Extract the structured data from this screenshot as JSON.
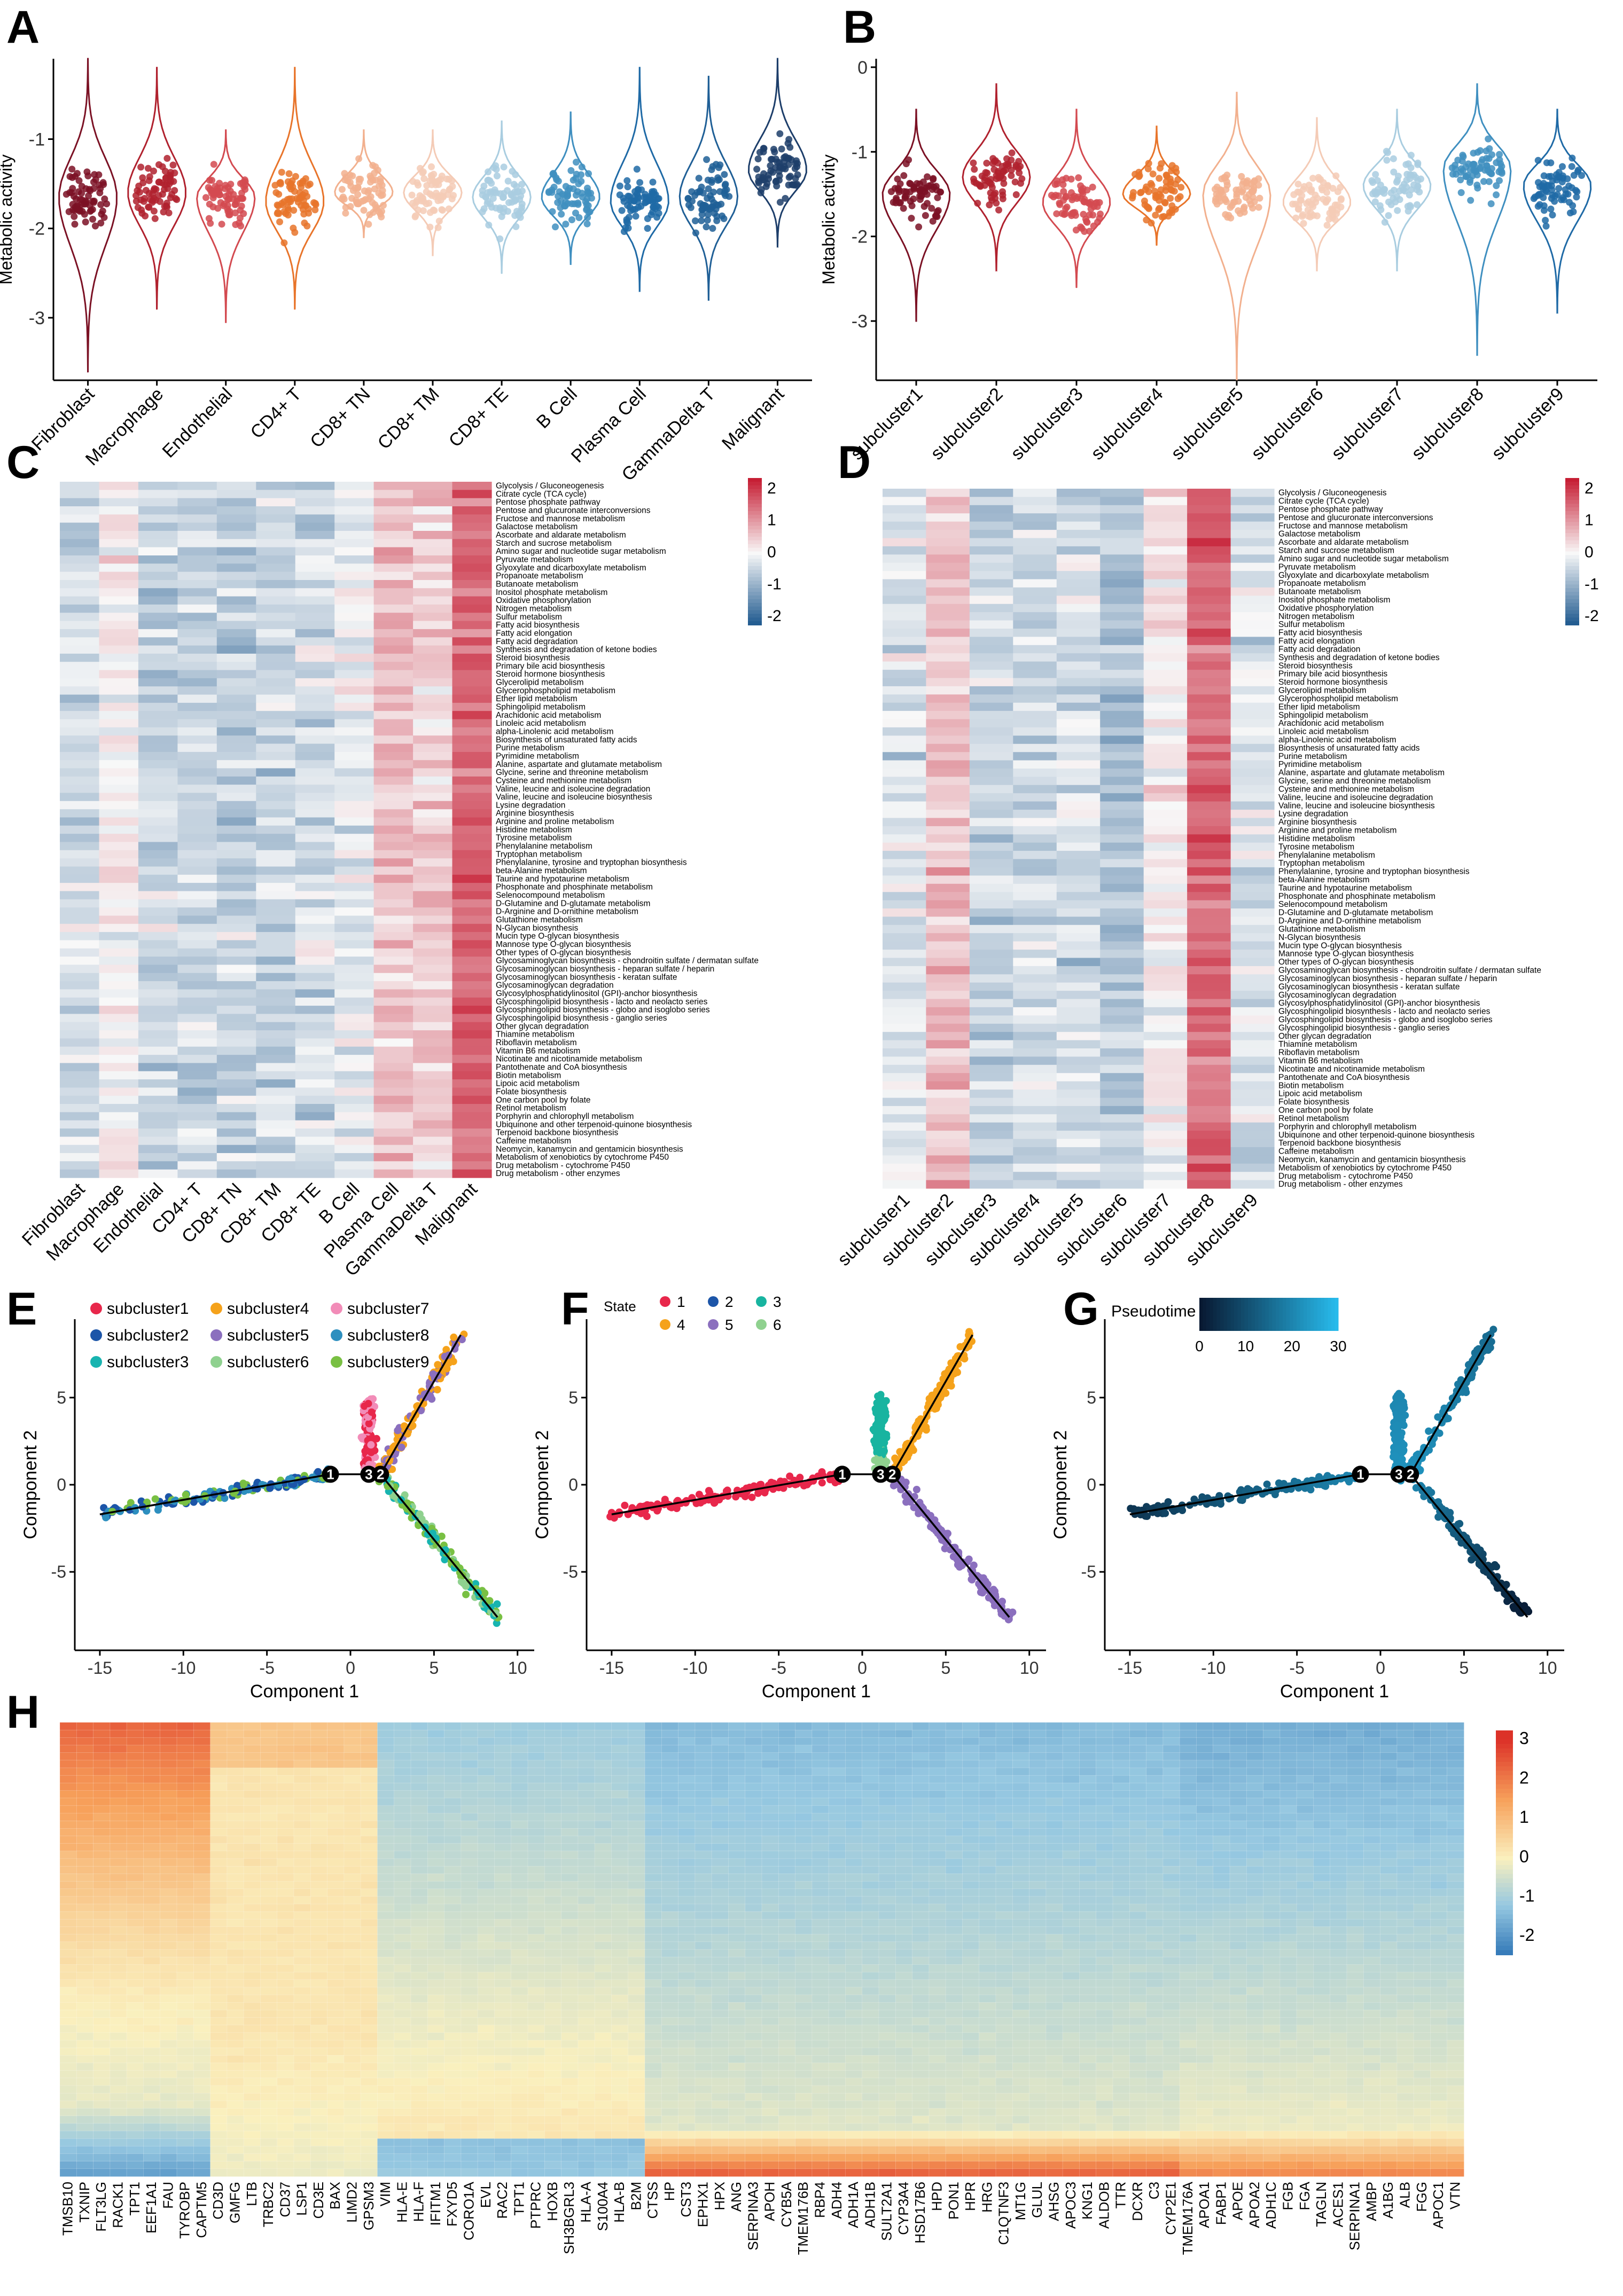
{
  "panel_labels": [
    "A",
    "B",
    "C",
    "D",
    "E",
    "F",
    "G",
    "H"
  ],
  "chart_data": [
    {
      "id": "A",
      "type": "violin",
      "ylabel": "Metabolic activity",
      "ylim": [
        -3.7,
        -0.1
      ],
      "yticks": [
        -1,
        -2,
        -3
      ],
      "categories": [
        "Fibroblast",
        "Macrophage",
        "Endothelial",
        "CD4+ T",
        "CD8+ TN",
        "CD8+ TM",
        "CD8+ TE",
        "B Cell",
        "Plasma Cell",
        "GammaDelta T",
        "Malignant"
      ],
      "medians": [
        -1.65,
        -1.6,
        -1.65,
        -1.7,
        -1.6,
        -1.6,
        -1.65,
        -1.65,
        -1.7,
        -1.65,
        -1.35
      ],
      "mins": [
        -3.6,
        -2.9,
        -3.05,
        -2.9,
        -2.1,
        -2.3,
        -2.5,
        -2.4,
        -2.7,
        -2.8,
        -2.2
      ],
      "maxs": [
        -0.1,
        -0.2,
        -0.9,
        -0.2,
        -0.9,
        -0.9,
        -0.8,
        -0.7,
        -0.2,
        -0.3,
        -0.1
      ],
      "colors": [
        "#7b1124",
        "#b0212e",
        "#d34a50",
        "#e8742a",
        "#f2b08e",
        "#f4cbb6",
        "#a9cde0",
        "#3f8fc0",
        "#1f6aa6",
        "#1f5f96",
        "#1d3e6a"
      ]
    },
    {
      "id": "B",
      "type": "violin",
      "ylabel": "Metabolic activity",
      "ylim": [
        -3.7,
        0.1
      ],
      "yticks": [
        0,
        -1,
        -2,
        -3
      ],
      "categories": [
        "subcluster1",
        "subcluster2",
        "subcluster3",
        "subcluster4",
        "subcluster5",
        "subcluster6",
        "subcluster7",
        "subcluster8",
        "subcluster9"
      ],
      "medians": [
        -1.5,
        -1.3,
        -1.6,
        -1.5,
        -1.5,
        -1.6,
        -1.4,
        -1.2,
        -1.4
      ],
      "mins": [
        -3.0,
        -2.4,
        -2.6,
        -2.1,
        -3.7,
        -2.4,
        -2.4,
        -3.4,
        -2.9
      ],
      "maxs": [
        -0.5,
        -0.2,
        -0.5,
        -0.7,
        -0.3,
        -0.6,
        -0.5,
        -0.2,
        -0.5
      ],
      "colors": [
        "#7b1124",
        "#b0212e",
        "#d34a50",
        "#e8742a",
        "#f2b08e",
        "#f4cbb6",
        "#a9cde0",
        "#3f8fc0",
        "#1f6aa6"
      ]
    },
    {
      "id": "C",
      "type": "heatmap",
      "columns": [
        "Fibroblast",
        "Macrophage",
        "Endothelial",
        "CD4+ T",
        "CD8+ TN",
        "CD8+ TM",
        "CD8+ TE",
        "B Cell",
        "Plasma Cell",
        "GammaDelta T",
        "Malignant"
      ],
      "legend_ticks": [
        2,
        1,
        0,
        -1,
        -2
      ],
      "rows": [
        "Glycolysis / Gluconeogenesis",
        "Citrate cycle (TCA cycle)",
        "Pentose phosphate pathway",
        "Pentose and glucuronate interconversions",
        "Fructose and mannose metabolism",
        "Galactose metabolism",
        "Ascorbate and aldarate metabolism",
        "Starch and sucrose metabolism",
        "Amino sugar and nucleotide sugar metabolism",
        "Pyruvate metabolism",
        "Glyoxylate and dicarboxylate metabolism",
        "Propanoate metabolism",
        "Butanoate metabolism",
        "Inositol phosphate metabolism",
        "Oxidative phosphorylation",
        "Nitrogen metabolism",
        "Sulfur metabolism",
        "Fatty acid biosynthesis",
        "Fatty acid elongation",
        "Fatty acid degradation",
        "Synthesis and degradation of ketone bodies",
        "Steroid biosynthesis",
        "Primary bile acid biosynthesis",
        "Steroid hormone biosynthesis",
        "Glycerolipid metabolism",
        "Glycerophospholipid metabolism",
        "Ether lipid metabolism",
        "Sphingolipid metabolism",
        "Arachidonic acid metabolism",
        "Linoleic acid metabolism",
        "alpha-Linolenic acid metabolism",
        "Biosynthesis of unsaturated fatty acids",
        "Purine metabolism",
        "Pyrimidine metabolism",
        "Alanine, aspartate and glutamate metabolism",
        "Glycine, serine and threonine metabolism",
        "Cysteine and methionine metabolism",
        "Valine, leucine and isoleucine degradation",
        "Valine, leucine and isoleucine biosynthesis",
        "Lysine degradation",
        "Arginine biosynthesis",
        "Arginine and proline metabolism",
        "Histidine metabolism",
        "Tyrosine metabolism",
        "Phenylalanine metabolism",
        "Tryptophan metabolism",
        "Phenylalanine, tyrosine and tryptophan biosynthesis",
        "beta-Alanine metabolism",
        "Taurine and hypotaurine metabolism",
        "Phosphonate and phosphinate metabolism",
        "Selenocompound metabolism",
        "D-Glutamine and D-glutamate metabolism",
        "D-Arginine and D-ornithine metabolism",
        "Glutathione metabolism",
        "N-Glycan biosynthesis",
        "Mucin type O-glycan biosynthesis",
        "Mannose type O-glycan biosynthesis",
        "Other types of O-glycan biosynthesis",
        "Glycosaminoglycan biosynthesis - chondroitin sulfate / dermatan sulfate",
        "Glycosaminoglycan biosynthesis - heparan sulfate / heparin",
        "Glycosaminoglycan biosynthesis - keratan sulfate",
        "Glycosaminoglycan degradation",
        "Glycosylphosphatidylinositol (GPI)-anchor biosynthesis",
        "Glycosphingolipid biosynthesis - lacto and neolacto series",
        "Glycosphingolipid biosynthesis - globo and isoglobo series",
        "Glycosphingolipid biosynthesis - ganglio series",
        "Other glycan degradation",
        "Thiamine metabolism",
        "Riboflavin metabolism",
        "Vitamin B6 metabolism",
        "Nicotinate and nicotinamide metabolism",
        "Pantothenate and CoA biosynthesis",
        "Biotin metabolism",
        "Lipoic acid metabolism",
        "Folate biosynthesis",
        "One carbon pool by folate",
        "Retinol metabolism",
        "Porphyrin and chlorophyll metabolism",
        "Ubiquinone and other terpenoid-quinone biosynthesis",
        "Terpenoid backbone biosynthesis",
        "Caffeine metabolism",
        "Neomycin, kanamycin and gentamicin biosynthesis",
        "Metabolism of xenobiotics by cytochrome P450",
        "Drug metabolism - cytochrome P450",
        "Drug metabolism - other enzymes"
      ],
      "column_means": [
        -0.4,
        0.1,
        -0.5,
        -0.5,
        -0.6,
        -0.5,
        -0.4,
        -0.2,
        0.6,
        0.4,
        1.5
      ]
    },
    {
      "id": "D",
      "type": "heatmap",
      "columns": [
        "subcluster1",
        "subcluster2",
        "subcluster3",
        "subcluster4",
        "subcluster5",
        "subcluster6",
        "subcluster7",
        "subcluster8",
        "subcluster9"
      ],
      "legend_ticks": [
        2,
        1,
        0,
        -1,
        -2
      ],
      "rows": [
        "Glycolysis / Gluconeogenesis",
        "Citrate cycle (TCA cycle)",
        "Pentose phosphate pathway",
        "Pentose and glucuronate interconversions",
        "Fructose and mannose metabolism",
        "Galactose metabolism",
        "Ascorbate and aldarate metabolism",
        "Starch and sucrose metabolism",
        "Amino sugar and nucleotide sugar metabolism",
        "Pyruvate metabolism",
        "Glyoxylate and dicarboxylate metabolism",
        "Propanoate metabolism",
        "Butanoate metabolism",
        "Inositol phosphate metabolism",
        "Oxidative phosphorylation",
        "Nitrogen metabolism",
        "Sulfur metabolism",
        "Fatty acid biosynthesis",
        "Fatty acid elongation",
        "Fatty acid degradation",
        "Synthesis and degradation of ketone bodies",
        "Steroid biosynthesis",
        "Primary bile acid biosynthesis",
        "Steroid hormone biosynthesis",
        "Glycerolipid metabolism",
        "Glycerophospholipid metabolism",
        "Ether lipid metabolism",
        "Sphingolipid metabolism",
        "Arachidonic acid metabolism",
        "Linoleic acid metabolism",
        "alpha-Linolenic acid metabolism",
        "Biosynthesis of unsaturated fatty acids",
        "Purine metabolism",
        "Pyrimidine metabolism",
        "Alanine, aspartate and glutamate metabolism",
        "Glycine, serine and threonine metabolism",
        "Cysteine and methionine metabolism",
        "Valine, leucine and isoleucine degradation",
        "Valine, leucine and isoleucine biosynthesis",
        "Lysine degradation",
        "Arginine biosynthesis",
        "Arginine and proline metabolism",
        "Histidine metabolism",
        "Tyrosine metabolism",
        "Phenylalanine metabolism",
        "Tryptophan metabolism",
        "Phenylalanine, tyrosine and tryptophan biosynthesis",
        "beta-Alanine metabolism",
        "Taurine and hypotaurine metabolism",
        "Phosphonate and phosphinate metabolism",
        "Selenocompound metabolism",
        "D-Glutamine and D-glutamate metabolism",
        "D-Arginine and D-ornithine metabolism",
        "Glutathione metabolism",
        "N-Glycan biosynthesis",
        "Mucin type O-glycan biosynthesis",
        "Mannose type O-glycan biosynthesis",
        "Other types of O-glycan biosynthesis",
        "Glycosaminoglycan biosynthesis - chondroitin sulfate / dermatan sulfate",
        "Glycosaminoglycan biosynthesis - heparan sulfate / heparin",
        "Glycosaminoglycan biosynthesis - keratan sulfate",
        "Glycosaminoglycan degradation",
        "Glycosylphosphatidylinositol (GPI)-anchor biosynthesis",
        "Glycosphingolipid biosynthesis - lacto and neolacto series",
        "Glycosphingolipid biosynthesis - globo and isoglobo series",
        "Glycosphingolipid biosynthesis - ganglio series",
        "Other glycan degradation",
        "Thiamine metabolism",
        "Riboflavin metabolism",
        "Vitamin B6 metabolism",
        "Nicotinate and nicotinamide metabolism",
        "Pantothenate and CoA biosynthesis",
        "Biotin metabolism",
        "Lipoic acid metabolism",
        "Folate biosynthesis",
        "One carbon pool by folate",
        "Retinol metabolism",
        "Porphyrin and chlorophyll metabolism",
        "Ubiquinone and other terpenoid-quinone biosynthesis",
        "Terpenoid backbone biosynthesis",
        "Caffeine metabolism",
        "Neomycin, kanamycin and gentamicin biosynthesis",
        "Metabolism of xenobiotics by cytochrome P450",
        "Drug metabolism - cytochrome P450",
        "Drug metabolism - other enzymes"
      ],
      "column_means": [
        -0.3,
        0.6,
        -0.5,
        -0.4,
        -0.4,
        -0.7,
        0.1,
        1.5,
        -0.3
      ]
    },
    {
      "id": "E",
      "type": "trajectory",
      "xlabel": "Component 1",
      "ylabel": "Component 2",
      "xlim": [
        -16.5,
        11
      ],
      "ylim": [
        -9.5,
        9.5
      ],
      "xticks": [
        -15,
        -10,
        -5,
        0,
        5,
        10
      ],
      "yticks": [
        5,
        0,
        -5
      ],
      "legend": [
        "subcluster1",
        "subcluster2",
        "subcluster3",
        "subcluster4",
        "subcluster5",
        "subcluster6",
        "subcluster7",
        "subcluster8",
        "subcluster9"
      ],
      "legend_colors": [
        "#e8274b",
        "#1c55a8",
        "#18b4b0",
        "#f5a21b",
        "#8b6fbe",
        "#8fd18f",
        "#f28cb8",
        "#2d8fbf",
        "#79c043"
      ],
      "branch_points": [
        {
          "label": "1",
          "x": -1.2,
          "y": 0.6
        },
        {
          "label": "3",
          "x": 1.1,
          "y": 0.6
        },
        {
          "label": "2",
          "x": 1.8,
          "y": 0.6
        }
      ]
    },
    {
      "id": "F",
      "type": "trajectory",
      "xlabel": "Component 1",
      "ylabel": "Component 2",
      "legend_title": "State",
      "legend": [
        "1",
        "2",
        "3",
        "4",
        "5",
        "6"
      ],
      "legend_colors": [
        "#e8274b",
        "#1c55a8",
        "#18b4a0",
        "#f5a21b",
        "#8b6fbe",
        "#8fd18f"
      ]
    },
    {
      "id": "G",
      "type": "trajectory",
      "xlabel": "Component 1",
      "ylabel": "Component 2",
      "legend_title": "Pseudotime",
      "colorbar_ticks": [
        0,
        10,
        20,
        30
      ]
    },
    {
      "id": "H",
      "type": "heatmap",
      "legend_ticks": [
        3,
        2,
        1,
        0,
        -1,
        -2
      ],
      "genes": [
        "TMSB10",
        "TXNIP",
        "FLT3LG",
        "RACK1",
        "TPT1",
        "EEF1A1",
        "FAU",
        "TYROBP",
        "CAPTM5",
        "CD3D",
        "GMFG",
        "LTB",
        "TRBC2",
        "CD37",
        "LSP1",
        "CD3E",
        "BAX",
        "LIMD2",
        "GPSM3",
        "VIM",
        "HLA-E",
        "HLA-F",
        "IFITM1",
        "FXYD5",
        "CORO1A",
        "EVL",
        "RAC2",
        "TPT1",
        "PTPRC",
        "HOXB",
        "SH3BGRL3",
        "HLA-A",
        "S100A4",
        "HLA-B",
        "B2M",
        "CTSS",
        "HP",
        "CST3",
        "EPHX1",
        "HPX",
        "ANG",
        "SERPINA3",
        "APOH",
        "CYB5A",
        "TMEM176B",
        "RBP4",
        "ADH4",
        "ADH1A",
        "ADH1B",
        "SULT2A1",
        "CYP3A4",
        "HSD17B6",
        "HPD",
        "PON1",
        "HPR",
        "HRG",
        "C1QTNF3",
        "MT1G",
        "GLUL",
        "AHSG",
        "APOC3",
        "KNG1",
        "ALDOB",
        "TTR",
        "DCXR",
        "C3",
        "CYP2E1",
        "TMEM176A",
        "APOA1",
        "FABP1",
        "APOE",
        "APOA2",
        "ADH1C",
        "FGB",
        "FGA",
        "TAGLN",
        "ACES1",
        "SERPINA1",
        "AMBP",
        "A1BG",
        "ALB",
        "FGG",
        "APOC1",
        "VTN"
      ]
    }
  ]
}
